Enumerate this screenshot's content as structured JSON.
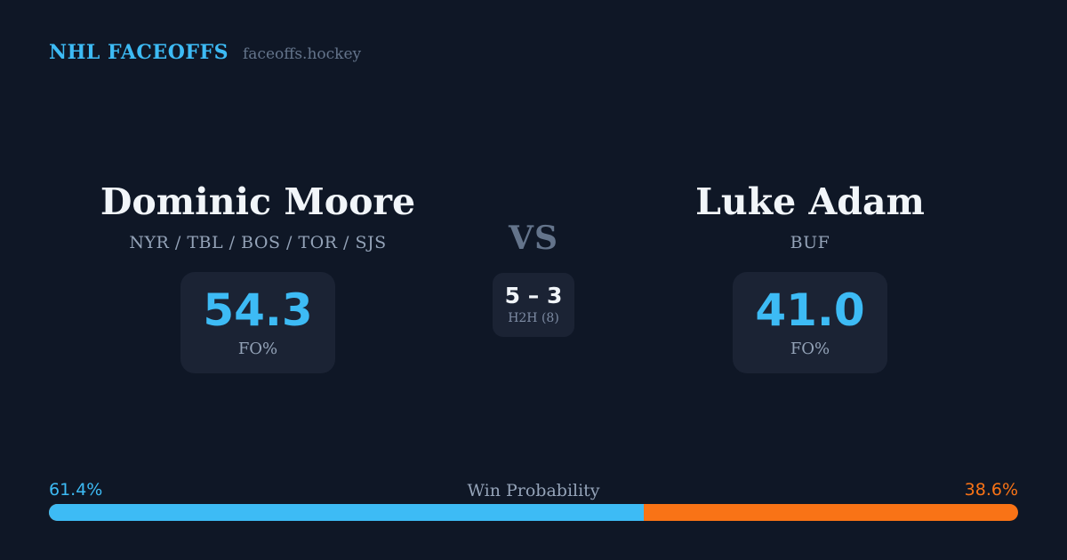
{
  "theme": {
    "background": "#0f1726",
    "panel": "#1b2334",
    "accent_blue": "#3dbbf5",
    "accent_orange": "#f97316",
    "text_primary": "#f1f5f9",
    "text_muted": "#94a3b8",
    "text_dim": "#64748b"
  },
  "header": {
    "brand": "NHL FACEOFFS",
    "site": "faceoffs.hockey"
  },
  "matchup": {
    "player_left": {
      "name": "Dominic Moore",
      "teams": "NYR / TBL / BOS / TOR / SJS",
      "stat_value": "54.3",
      "stat_label": "FO%"
    },
    "vs_label": "VS",
    "h2h": {
      "score": "5 – 3",
      "label": "H2H (8)"
    },
    "player_right": {
      "name": "Luke Adam",
      "teams": "BUF",
      "stat_value": "41.0",
      "stat_label": "FO%"
    }
  },
  "win_probability": {
    "title": "Win Probability",
    "left_pct_label": "61.4%",
    "right_pct_label": "38.6%",
    "left_value": 61.4,
    "right_value": 38.6
  }
}
